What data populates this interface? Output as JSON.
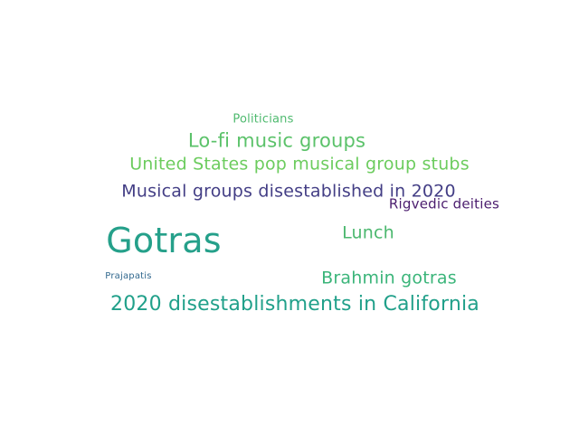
{
  "words": [
    {
      "text": "Politicians",
      "color": "#4fba6f"
    },
    {
      "text": "Lo-fi music groups",
      "color": "#5bc26a"
    },
    {
      "text": "United States pop musical group stubs",
      "color": "#6ccc5e"
    },
    {
      "text": "Musical groups disestablished in 2020",
      "color": "#433e85"
    },
    {
      "text": "Rigvedic deities",
      "color": "#4b1d6e"
    },
    {
      "text": "Gotras",
      "color": "#25a08a"
    },
    {
      "text": "Lunch",
      "color": "#4cb86f"
    },
    {
      "text": "Prajapatis",
      "color": "#31688e"
    },
    {
      "text": "Brahmin gotras",
      "color": "#3bb57a"
    },
    {
      "text": "2020 disestablishments in California",
      "color": "#21a08a"
    }
  ]
}
